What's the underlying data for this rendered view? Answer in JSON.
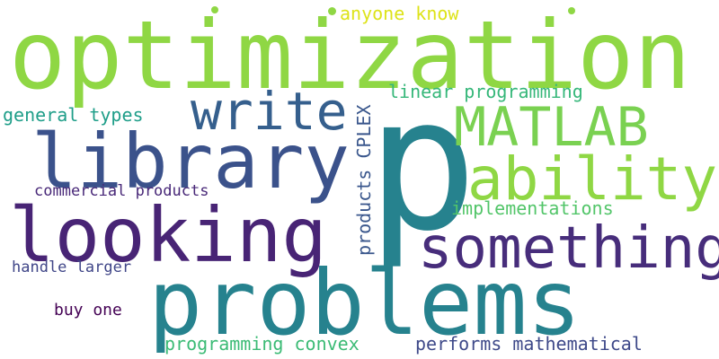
{
  "words": [
    {
      "text": "optimization",
      "color": "#8fd744"
    },
    {
      "text": "p",
      "color": "#26828e"
    },
    {
      "text": "problems",
      "color": "#26828e"
    },
    {
      "text": "library",
      "color": "#3b528b"
    },
    {
      "text": "looking",
      "color": "#482475"
    },
    {
      "text": "something",
      "color": "#472d7b"
    },
    {
      "text": "ability",
      "color": "#8fd744"
    },
    {
      "text": "MATLAB",
      "color": "#7ad151"
    },
    {
      "text": "write",
      "color": "#355f8d"
    },
    {
      "text": "anyone know",
      "color": "#dde318"
    },
    {
      "text": "linear programming",
      "color": "#35b779"
    },
    {
      "text": "general types",
      "color": "#1f9e89"
    },
    {
      "text": "products CPLEX",
      "color": "#39568c"
    },
    {
      "text": "implementations",
      "color": "#52c569"
    },
    {
      "text": "commercial products",
      "color": "#482878"
    },
    {
      "text": "handle larger",
      "color": "#404688"
    },
    {
      "text": "buy one",
      "color": "#440154"
    },
    {
      "text": "programming convex",
      "color": "#3bbb75"
    },
    {
      "text": "performs mathematical",
      "color": "#3e4989"
    }
  ],
  "dots": [
    {
      "name": "dot-1",
      "color": "#8fd744"
    },
    {
      "name": "dot-2",
      "color": "#8fd744"
    },
    {
      "name": "dot-3",
      "color": "#8fd744"
    }
  ]
}
